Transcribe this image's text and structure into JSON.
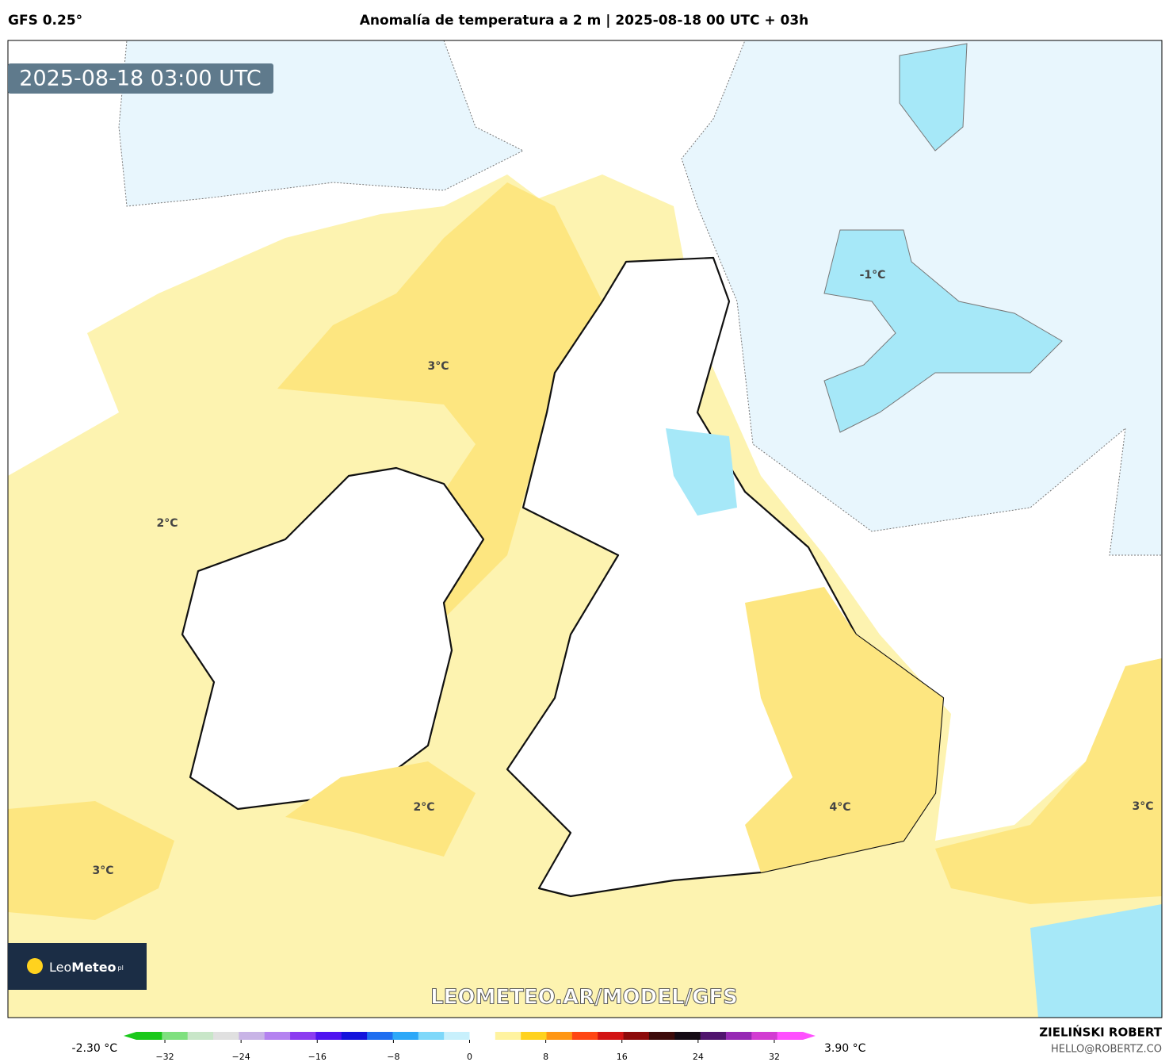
{
  "header": {
    "model": "GFS 0.25°",
    "title": "Anomalía de temperatura a 2 m | 2025-08-18 00 UTC + 03h"
  },
  "timestamp": "2025-08-18 03:00 UTC",
  "map_labels": [
    "-1°C",
    "3°C",
    "2°C",
    "2°C",
    "3°C",
    "4°C",
    "3°C"
  ],
  "watermark": "LEOMETEO.AR/MODEL/GFS",
  "logo": {
    "name": "Leo",
    "name_bold": "Meteo",
    "suffix": "pl"
  },
  "colorbar": {
    "min_label": "-2.30 °C",
    "max_label": "3.90 °C",
    "lim": [
      -35,
      35
    ],
    "ticks": [
      {
        "value": -32,
        "label": "−32"
      },
      {
        "value": -24,
        "label": "−24"
      },
      {
        "value": -16,
        "label": "−16"
      },
      {
        "value": -8,
        "label": "−8"
      },
      0,
      8,
      16,
      24,
      32
    ],
    "colors": [
      "#19c819",
      "#7ee07e",
      "#c8e6c8",
      "#e0e0e0",
      "#c8b4e6",
      "#b482f0",
      "#8c3cf0",
      "#5014f0",
      "#1414dc",
      "#1e6ef0",
      "#2ca8f8",
      "#7ed8fa",
      "#c8f0fc",
      "#ffffff",
      "#fff3a0",
      "#ffd21e",
      "#ff9614",
      "#ff4614",
      "#d21414",
      "#8c0a0a",
      "#3c0a0a",
      "#140a14",
      "#50146e",
      "#9628b4",
      "#d23cd2",
      "#ff50ff"
    ]
  },
  "credit": {
    "author": "ZIELIŃSKI ROBERT",
    "email": "HELLO@ROBERTZ.CO"
  }
}
